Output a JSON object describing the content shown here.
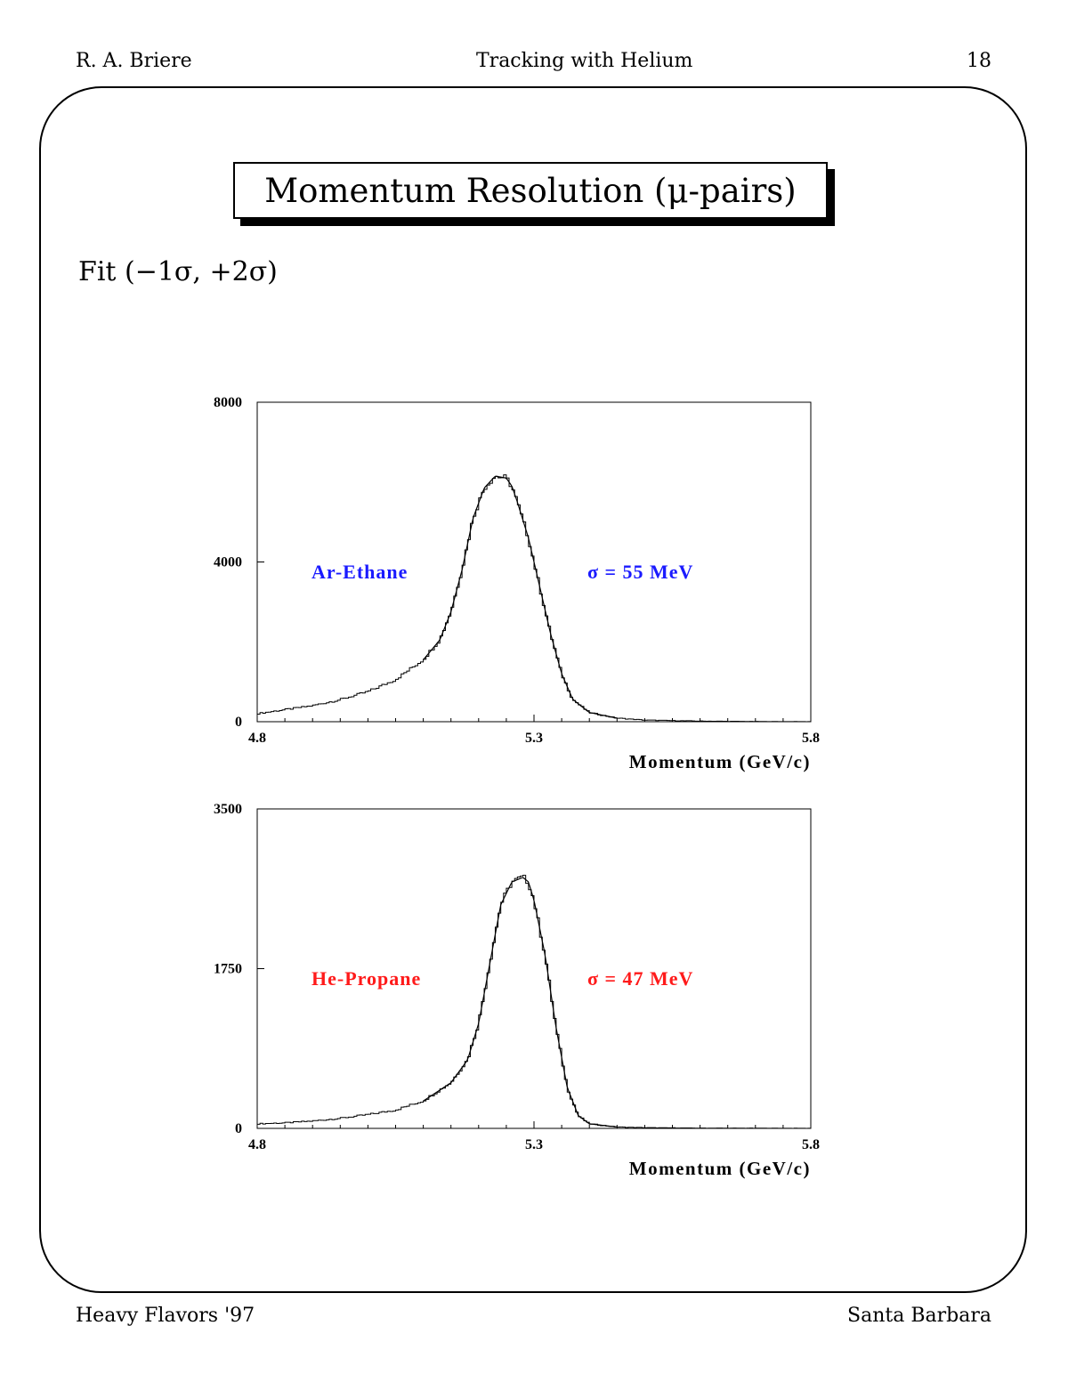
{
  "header": {
    "author": "R. A. Briere",
    "topic": "Tracking with Helium",
    "page_number": "18"
  },
  "footer": {
    "conference": "Heavy Flavors '97",
    "location": "Santa Barbara"
  },
  "slide": {
    "title": "Momentum Resolution (μ-pairs)",
    "fit_note": "Fit (−1σ, +2σ)"
  },
  "chart_data": [
    {
      "type": "line",
      "title": "",
      "xlabel": "Momentum (GeV/c)",
      "ylabel": "",
      "xlim": [
        4.8,
        5.8
      ],
      "ylim": [
        0,
        8000
      ],
      "xticks": [
        "4.8",
        "5.3",
        "5.8"
      ],
      "yticks": [
        "0",
        "4000",
        "8000"
      ],
      "gas_label": "Ar-Ethane",
      "resolution_label": "σ = 55 MeV",
      "label_color": "#1a1aff",
      "grid": false,
      "series": [
        {
          "x": [
            4.8,
            4.85,
            4.9,
            4.95,
            5.0,
            5.05,
            5.1,
            5.13,
            5.15,
            5.17,
            5.19,
            5.21,
            5.23,
            5.25,
            5.26,
            5.27,
            5.29,
            5.31,
            5.33,
            5.35,
            5.37,
            5.4,
            5.45,
            5.5,
            5.6,
            5.7,
            5.8
          ],
          "y": [
            200,
            300,
            400,
            550,
            750,
            1050,
            1550,
            2050,
            2750,
            3800,
            5100,
            5850,
            6150,
            6100,
            5900,
            5500,
            4600,
            3400,
            2200,
            1200,
            560,
            230,
            90,
            40,
            15,
            5,
            2
          ]
        }
      ]
    },
    {
      "type": "line",
      "title": "",
      "xlabel": "Momentum (GeV/c)",
      "ylabel": "",
      "xlim": [
        4.8,
        5.8
      ],
      "ylim": [
        0,
        3500
      ],
      "xticks": [
        "4.8",
        "5.3",
        "5.8"
      ],
      "yticks": [
        "0",
        "1750",
        "3500"
      ],
      "gas_label": "He-Propane",
      "resolution_label": "σ = 47 MeV",
      "label_color": "#ff1a1a",
      "grid": false,
      "series": [
        {
          "x": [
            4.8,
            4.85,
            4.9,
            4.95,
            5.0,
            5.05,
            5.1,
            5.15,
            5.18,
            5.2,
            5.22,
            5.24,
            5.26,
            5.28,
            5.29,
            5.3,
            5.32,
            5.34,
            5.36,
            5.38,
            5.4,
            5.45,
            5.5,
            5.6,
            5.7,
            5.8
          ],
          "y": [
            50,
            60,
            80,
            110,
            150,
            200,
            300,
            500,
            750,
            1150,
            1800,
            2450,
            2700,
            2750,
            2700,
            2500,
            1900,
            1100,
            450,
            140,
            50,
            15,
            8,
            3,
            2,
            1
          ]
        }
      ]
    }
  ]
}
